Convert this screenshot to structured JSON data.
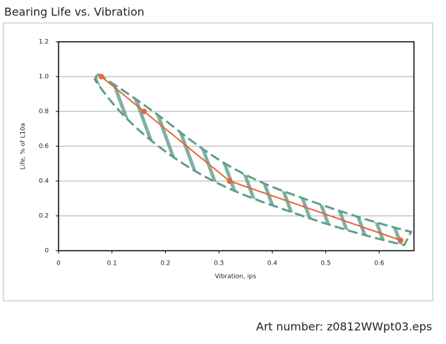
{
  "chart_data": {
    "type": "line",
    "title": "Bearing Life vs. Vibration",
    "x_label": "Vibration, ips",
    "y_label": "Life, % of L10a",
    "x": [
      0.08,
      0.16,
      0.32,
      0.64
    ],
    "series": [
      {
        "color": "#e8643c",
        "values": [
          1,
          0.8,
          0.4,
          0.06
        ]
      }
    ],
    "xlim": [
      0,
      0.665
    ],
    "ylim": [
      0,
      1.2
    ],
    "xticks": [
      0,
      0.1,
      0.2,
      0.3,
      0.4,
      0.5,
      0.6
    ],
    "yticks": [
      0,
      0.2,
      0.4,
      0.6,
      0.8,
      {
        "value": 1,
        "label": "1.0"
      },
      1.2
    ],
    "grid": true
  },
  "footer": "Art number: z0812WWpt03.eps"
}
